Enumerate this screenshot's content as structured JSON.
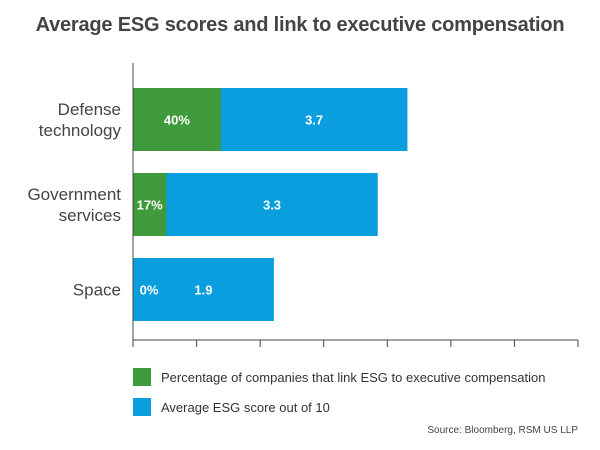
{
  "chart_data": {
    "type": "bar",
    "orientation": "horizontal",
    "stacked": true,
    "title": "Average ESG scores and link to executive compensation",
    "categories": [
      "Defense technology",
      "Government services",
      "Space"
    ],
    "category_lines": [
      [
        "Defense",
        "technology"
      ],
      [
        "Government",
        "services"
      ],
      [
        "Space"
      ]
    ],
    "xlim": [
      0,
      6
    ],
    "x_tick_count": 8,
    "grid": false,
    "series": [
      {
        "name": "Percentage of companies that link ESG to executive compensation",
        "color": "#3f9a3c",
        "labels": [
          "40%",
          "17%",
          "0%"
        ]
      },
      {
        "name": "Average ESG score out of 10",
        "color": "#0a9ede",
        "values": [
          3.7,
          3.3,
          1.9
        ],
        "labels": [
          "3.7",
          "3.3",
          "1.9"
        ]
      }
    ],
    "legend_position": "bottom-left"
  },
  "source": "Source: Bloomberg, RSM US LLP"
}
